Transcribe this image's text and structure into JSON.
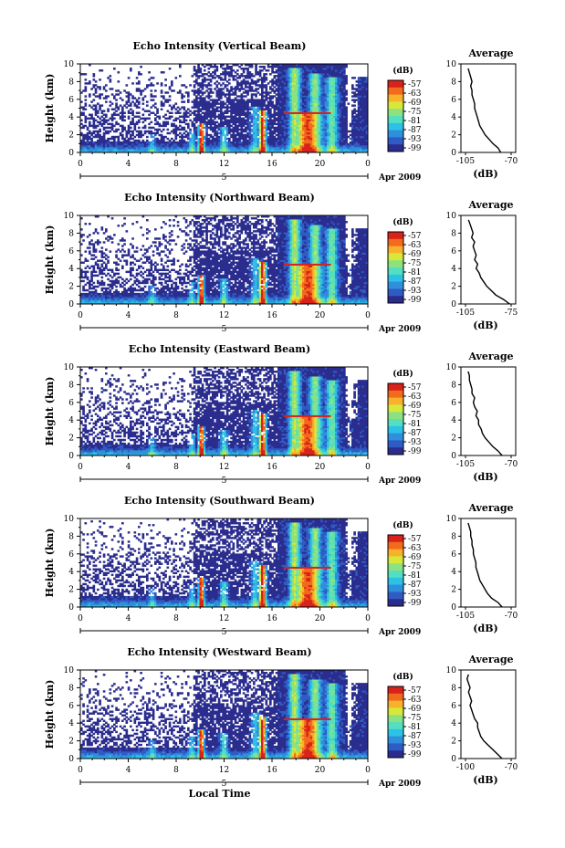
{
  "chart_data": [
    {
      "type": "heatmap",
      "title": "Echo Intensity (Vertical Beam)",
      "ylabel": "Height (km)",
      "x_ticks": [
        "0",
        "4",
        "8",
        "12",
        "16",
        "20",
        "0"
      ],
      "y_ticks": [
        "0",
        "2",
        "4",
        "6",
        "8",
        "10"
      ],
      "xlim": [
        0,
        24
      ],
      "ylim": [
        0,
        10
      ],
      "date_label": "5",
      "date_tag": "Apr 2009",
      "colorbar": {
        "unit": "(dB)",
        "ticks": [
          "-57",
          "-63",
          "-69",
          "-75",
          "-81",
          "-87",
          "-93",
          "-99"
        ]
      },
      "profile": {
        "title": "Average",
        "xlabel": "(dB)",
        "x_ticks": [
          "-105",
          "-70"
        ],
        "xlim": [
          -105,
          -70
        ],
        "y_ticks": [
          "0",
          "2",
          "4",
          "6",
          "8",
          "10"
        ],
        "points": [
          [
            -78,
            0
          ],
          [
            -80,
            0.5
          ],
          [
            -84,
            1
          ],
          [
            -87,
            1.5
          ],
          [
            -90,
            2
          ],
          [
            -92,
            2.5
          ],
          [
            -94,
            3
          ],
          [
            -95,
            3.5
          ],
          [
            -96,
            4
          ],
          [
            -97,
            4.5
          ],
          [
            -98,
            5
          ],
          [
            -98,
            5.5
          ],
          [
            -99,
            6
          ],
          [
            -100,
            6.5
          ],
          [
            -100,
            7
          ],
          [
            -101,
            7.5
          ],
          [
            -100,
            8
          ],
          [
            -101,
            8.5
          ],
          [
            -102,
            9
          ],
          [
            -103,
            9.5
          ]
        ]
      }
    },
    {
      "type": "heatmap",
      "title": "Echo Intensity (Northward Beam)",
      "ylabel": "Height (km)",
      "x_ticks": [
        "0",
        "4",
        "8",
        "12",
        "16",
        "20",
        "0"
      ],
      "y_ticks": [
        "0",
        "2",
        "4",
        "6",
        "8",
        "10"
      ],
      "xlim": [
        0,
        24
      ],
      "ylim": [
        0,
        10
      ],
      "date_label": "5",
      "date_tag": "Apr 2009",
      "colorbar": {
        "unit": "(dB)",
        "ticks": [
          "-57",
          "-63",
          "-69",
          "-75",
          "-81",
          "-87",
          "-93",
          "-99"
        ]
      },
      "profile": {
        "title": "Average",
        "xlabel": "(dB)",
        "x_ticks": [
          "-105",
          "-75"
        ],
        "xlim": [
          -105,
          -75
        ],
        "y_ticks": [
          "0",
          "2",
          "4",
          "6",
          "8",
          "10"
        ],
        "points": [
          [
            -76,
            0
          ],
          [
            -80,
            0.5
          ],
          [
            -85,
            1
          ],
          [
            -88,
            1.5
          ],
          [
            -91,
            2
          ],
          [
            -93,
            2.5
          ],
          [
            -95,
            3
          ],
          [
            -96,
            3.5
          ],
          [
            -98,
            4
          ],
          [
            -97,
            4.5
          ],
          [
            -99,
            5
          ],
          [
            -98,
            5.5
          ],
          [
            -99,
            6
          ],
          [
            -100,
            6.5
          ],
          [
            -99,
            7
          ],
          [
            -101,
            7.5
          ],
          [
            -100,
            8
          ],
          [
            -101,
            8.5
          ],
          [
            -102,
            9
          ],
          [
            -103,
            9.5
          ]
        ]
      }
    },
    {
      "type": "heatmap",
      "title": "Echo Intensity (Eastward Beam)",
      "ylabel": "Height (km)",
      "x_ticks": [
        "0",
        "4",
        "8",
        "12",
        "16",
        "20",
        "0"
      ],
      "y_ticks": [
        "0",
        "2",
        "4",
        "6",
        "8",
        "10"
      ],
      "xlim": [
        0,
        24
      ],
      "ylim": [
        0,
        10
      ],
      "date_label": "5",
      "date_tag": "Apr 2009",
      "colorbar": {
        "unit": "(dB)",
        "ticks": [
          "-57",
          "-63",
          "-69",
          "-75",
          "-81",
          "-87",
          "-93",
          "-99"
        ]
      },
      "profile": {
        "title": "Average",
        "xlabel": "(dB)",
        "x_ticks": [
          "-105",
          "-70"
        ],
        "xlim": [
          -105,
          -70
        ],
        "y_ticks": [
          "0",
          "2",
          "4",
          "6",
          "8",
          "10"
        ],
        "points": [
          [
            -77,
            0
          ],
          [
            -80,
            0.5
          ],
          [
            -84,
            1
          ],
          [
            -87,
            1.5
          ],
          [
            -90,
            2
          ],
          [
            -92,
            2.5
          ],
          [
            -93,
            3
          ],
          [
            -95,
            3.5
          ],
          [
            -95,
            4
          ],
          [
            -97,
            4.5
          ],
          [
            -96,
            5
          ],
          [
            -98,
            5.5
          ],
          [
            -99,
            6
          ],
          [
            -98,
            6.5
          ],
          [
            -100,
            7
          ],
          [
            -100,
            7.5
          ],
          [
            -101,
            8
          ],
          [
            -102,
            8.5
          ],
          [
            -102,
            9
          ],
          [
            -103,
            9.5
          ]
        ]
      }
    },
    {
      "type": "heatmap",
      "title": "Echo Intensity (Southward Beam)",
      "ylabel": "Height (km)",
      "x_ticks": [
        "0",
        "4",
        "8",
        "12",
        "16",
        "20",
        "0"
      ],
      "y_ticks": [
        "0",
        "2",
        "4",
        "6",
        "8",
        "10"
      ],
      "xlim": [
        0,
        24
      ],
      "ylim": [
        0,
        10
      ],
      "date_label": "5",
      "date_tag": "Apr 2009",
      "colorbar": {
        "unit": "(dB)",
        "ticks": [
          "-57",
          "-63",
          "-69",
          "-75",
          "-81",
          "-87",
          "-93",
          "-99"
        ]
      },
      "profile": {
        "title": "Average",
        "xlabel": "(dB)",
        "x_ticks": [
          "-105",
          "-70"
        ],
        "xlim": [
          -105,
          -70
        ],
        "y_ticks": [
          "0",
          "2",
          "4",
          "6",
          "8",
          "10"
        ],
        "points": [
          [
            -77,
            0
          ],
          [
            -80,
            0.5
          ],
          [
            -85,
            1
          ],
          [
            -88,
            1.5
          ],
          [
            -90,
            2
          ],
          [
            -92,
            2.5
          ],
          [
            -94,
            3
          ],
          [
            -95,
            3.5
          ],
          [
            -96,
            4
          ],
          [
            -97,
            4.5
          ],
          [
            -97,
            5
          ],
          [
            -98,
            5.5
          ],
          [
            -99,
            6
          ],
          [
            -99,
            6.5
          ],
          [
            -100,
            7
          ],
          [
            -100,
            7.5
          ],
          [
            -101,
            8
          ],
          [
            -101,
            8.5
          ],
          [
            -102,
            9
          ],
          [
            -103,
            9.5
          ]
        ]
      }
    },
    {
      "type": "heatmap",
      "title": "Echo Intensity (Westward Beam)",
      "ylabel": "Height (km)",
      "xlabel": "Local Time",
      "x_ticks": [
        "0",
        "4",
        "8",
        "12",
        "16",
        "20",
        "0"
      ],
      "y_ticks": [
        "0",
        "2",
        "4",
        "6",
        "8",
        "10"
      ],
      "xlim": [
        0,
        24
      ],
      "ylim": [
        0,
        10
      ],
      "date_label": "5",
      "date_tag": "Apr 2009",
      "colorbar": {
        "unit": "(dB)",
        "ticks": [
          "-57",
          "-63",
          "-69",
          "-75",
          "-81",
          "-87",
          "-93",
          "-99"
        ]
      },
      "profile": {
        "title": "Average",
        "xlabel": "(dB)",
        "x_ticks": [
          "-100",
          "-70"
        ],
        "xlim": [
          -100,
          -70
        ],
        "y_ticks": [
          "0",
          "2",
          "4",
          "6",
          "8",
          "10"
        ],
        "points": [
          [
            -76,
            0
          ],
          [
            -79,
            0.5
          ],
          [
            -82,
            1
          ],
          [
            -85,
            1.5
          ],
          [
            -88,
            2
          ],
          [
            -90,
            2.5
          ],
          [
            -91,
            3
          ],
          [
            -92,
            3.5
          ],
          [
            -92,
            4
          ],
          [
            -94,
            4.5
          ],
          [
            -95,
            5
          ],
          [
            -96,
            5.5
          ],
          [
            -97,
            6
          ],
          [
            -96,
            6.5
          ],
          [
            -97,
            7
          ],
          [
            -98,
            7.5
          ],
          [
            -97,
            8
          ],
          [
            -98,
            8.5
          ],
          [
            -99,
            9
          ],
          [
            -98,
            9.5
          ]
        ]
      }
    }
  ],
  "colors": {
    "colormap": [
      "#2b2d8e",
      "#2f5cc4",
      "#2f8fdc",
      "#2cc1e6",
      "#54e0c0",
      "#8de27f",
      "#d8e83a",
      "#f8b12b",
      "#f26a1d",
      "#d8221a"
    ],
    "background": "#ffffff",
    "axis": "#000000"
  }
}
